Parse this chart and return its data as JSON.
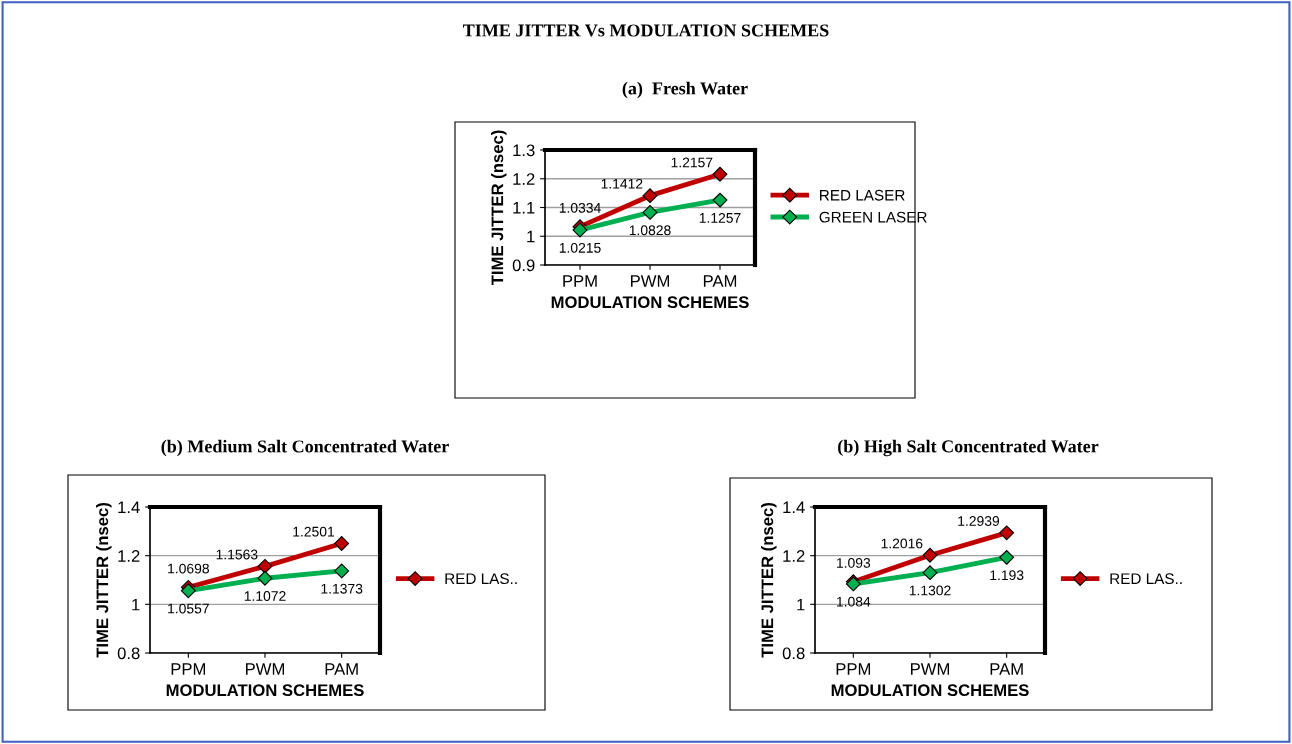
{
  "chart_data": [
    {
      "type": "line",
      "title": "TIME JITTER Vs MODULATION SCHEMES",
      "subtitle": "(a)  Fresh Water",
      "xlabel": "MODULATION SCHEMES",
      "ylabel": "TIME JITTER (nsec)",
      "categories": [
        "PPM",
        "PWM",
        "PAM"
      ],
      "series": [
        {
          "name": "RED LASER",
          "color": "#c00000",
          "values": [
            1.0334,
            1.1412,
            1.2157
          ]
        },
        {
          "name": "GREEN LASER",
          "color": "#00b050",
          "values": [
            1.0215,
            1.0828,
            1.1257
          ]
        }
      ],
      "ylim": [
        0.9,
        1.3
      ],
      "yticks": [
        0.9,
        1,
        1.1,
        1.2,
        1.3
      ],
      "grid": "y",
      "legend": "right",
      "marker": "diamond",
      "data_labels": true
    },
    {
      "type": "line",
      "title": "(b) Medium Salt Concentrated Water",
      "xlabel": "MODULATION SCHEMES",
      "ylabel": "TIME JITTER (nsec)",
      "categories": [
        "PPM",
        "PWM",
        "PAM"
      ],
      "series": [
        {
          "name": "RED LAS..",
          "color": "#c00000",
          "values": [
            1.0698,
            1.1563,
            1.2501
          ]
        },
        {
          "color": "#00b050",
          "values": [
            1.0557,
            1.1072,
            1.1373
          ]
        }
      ],
      "ylim": [
        0.8,
        1.4
      ],
      "yticks": [
        0.8,
        1,
        1.2,
        1.4
      ],
      "grid": "y",
      "legend": "right",
      "marker": "diamond",
      "data_labels": true
    },
    {
      "type": "line",
      "title": "(b) High Salt Concentrated Water",
      "xlabel": "MODULATION SCHEMES",
      "ylabel": "TIME JITTER (nsec)",
      "categories": [
        "PPM",
        "PWM",
        "PAM"
      ],
      "series": [
        {
          "name": "RED LAS..",
          "color": "#c00000",
          "values": [
            1.093,
            1.2016,
            1.2939
          ]
        },
        {
          "color": "#00b050",
          "values": [
            1.084,
            1.1302,
            1.193
          ]
        }
      ],
      "ylim": [
        0.8,
        1.4
      ],
      "yticks": [
        0.8,
        1,
        1.2,
        1.4
      ],
      "grid": "y",
      "legend": "right",
      "marker": "diamond",
      "data_labels": true
    }
  ]
}
